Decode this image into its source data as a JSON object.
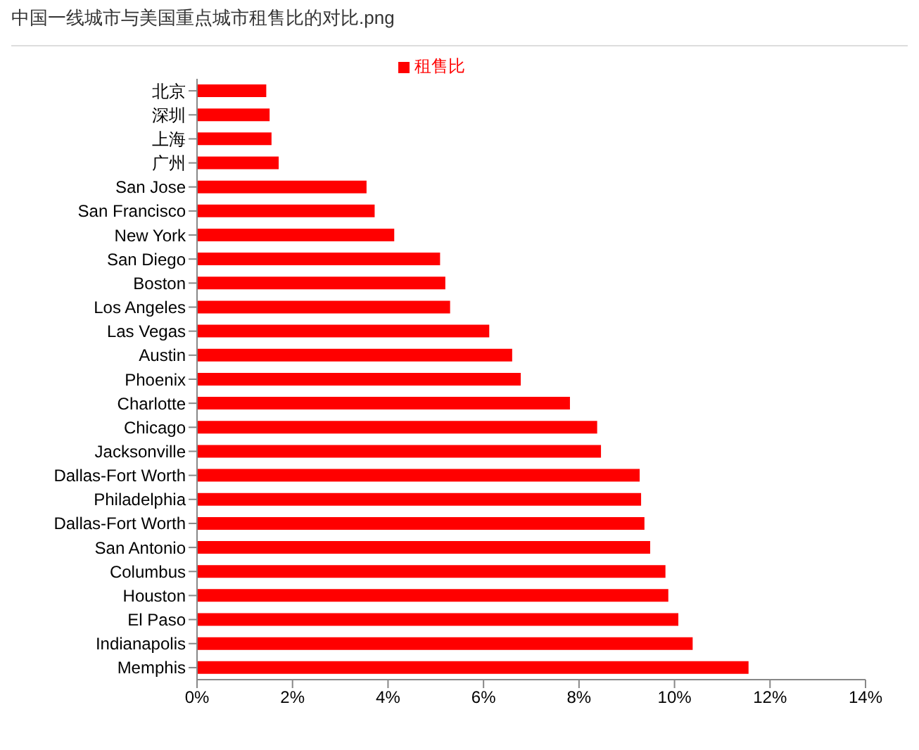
{
  "chart_data": {
    "type": "bar",
    "orientation": "horizontal",
    "title": "中国一线城市与美国重点城市租售比的对比.png",
    "categories": [
      "北京",
      "深圳",
      "上海",
      "广州",
      "San Jose",
      "San Francisco",
      "New York",
      "San Diego",
      "Boston",
      "Los Angeles",
      "Las Vegas",
      "Austin",
      "Phoenix",
      "Charlotte",
      "Chicago",
      "Jacksonville",
      "Dallas-Fort Worth",
      "Philadelphia",
      "Dallas-Fort Worth",
      "San Antonio",
      "Columbus",
      "Houston",
      "El Paso",
      "Indianapolis",
      "Memphis"
    ],
    "series": [
      {
        "name": "租售比",
        "color": "#ff0000",
        "values": [
          1.45,
          1.52,
          1.56,
          1.71,
          3.55,
          3.72,
          4.13,
          5.09,
          5.2,
          5.3,
          6.12,
          6.6,
          6.78,
          7.81,
          8.38,
          8.46,
          9.27,
          9.3,
          9.37,
          9.49,
          9.81,
          9.87,
          10.08,
          10.38,
          11.55
        ]
      }
    ],
    "xlim": [
      0,
      14
    ],
    "xticks": [
      {
        "value": 0,
        "label": "0%"
      },
      {
        "value": 2,
        "label": "2%"
      },
      {
        "value": 4,
        "label": "4%"
      },
      {
        "value": 6,
        "label": "6%"
      },
      {
        "value": 8,
        "label": "8%"
      },
      {
        "value": 10,
        "label": "10%"
      },
      {
        "value": 12,
        "label": "12%"
      },
      {
        "value": 14,
        "label": "14%"
      }
    ],
    "grid": false,
    "legend": "top"
  }
}
